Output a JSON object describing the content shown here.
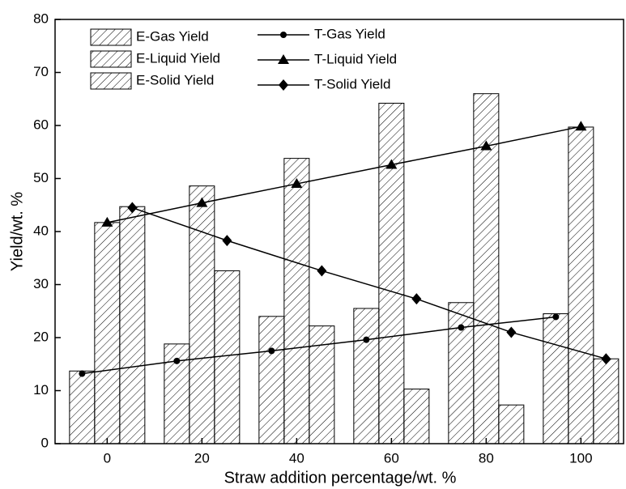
{
  "chart_data": {
    "type": "bar-line",
    "xlabel": "Straw addition percentage/wt. %",
    "ylabel": "Yield/wt. %",
    "x": [
      0,
      20,
      40,
      60,
      80,
      100
    ],
    "xlim": [
      -11,
      109
    ],
    "xticks": [
      0,
      20,
      40,
      60,
      80,
      100
    ],
    "ylim": [
      0,
      80
    ],
    "yticks": [
      0,
      10,
      20,
      30,
      40,
      50,
      60,
      70,
      80
    ],
    "bar_series": [
      {
        "name": "E-Gas Yield",
        "color": "#000000",
        "values": [
          13.7,
          18.8,
          24.0,
          25.5,
          26.6,
          24.5
        ]
      },
      {
        "name": "E-Liquid Yield",
        "color": "#000000",
        "values": [
          41.7,
          48.6,
          53.8,
          64.2,
          66.0,
          59.7
        ]
      },
      {
        "name": "E-Solid Yield",
        "color": "#000000",
        "values": [
          44.7,
          32.6,
          22.2,
          10.3,
          7.3,
          16.0
        ]
      }
    ],
    "line_series": [
      {
        "name": "T-Gas Yield",
        "color": "#000000",
        "marker": "circle",
        "values": [
          13.2,
          15.6,
          17.5,
          19.6,
          21.9,
          23.9
        ]
      },
      {
        "name": "T-Liquid Yield",
        "color": "#000000",
        "marker": "triangle",
        "values": [
          41.7,
          45.4,
          49.0,
          52.6,
          56.1,
          59.8
        ]
      },
      {
        "name": "T-Solid Yield",
        "color": "#000000",
        "marker": "diamond",
        "values": [
          44.5,
          38.3,
          32.6,
          27.3,
          21.0,
          16.0
        ]
      }
    ]
  }
}
